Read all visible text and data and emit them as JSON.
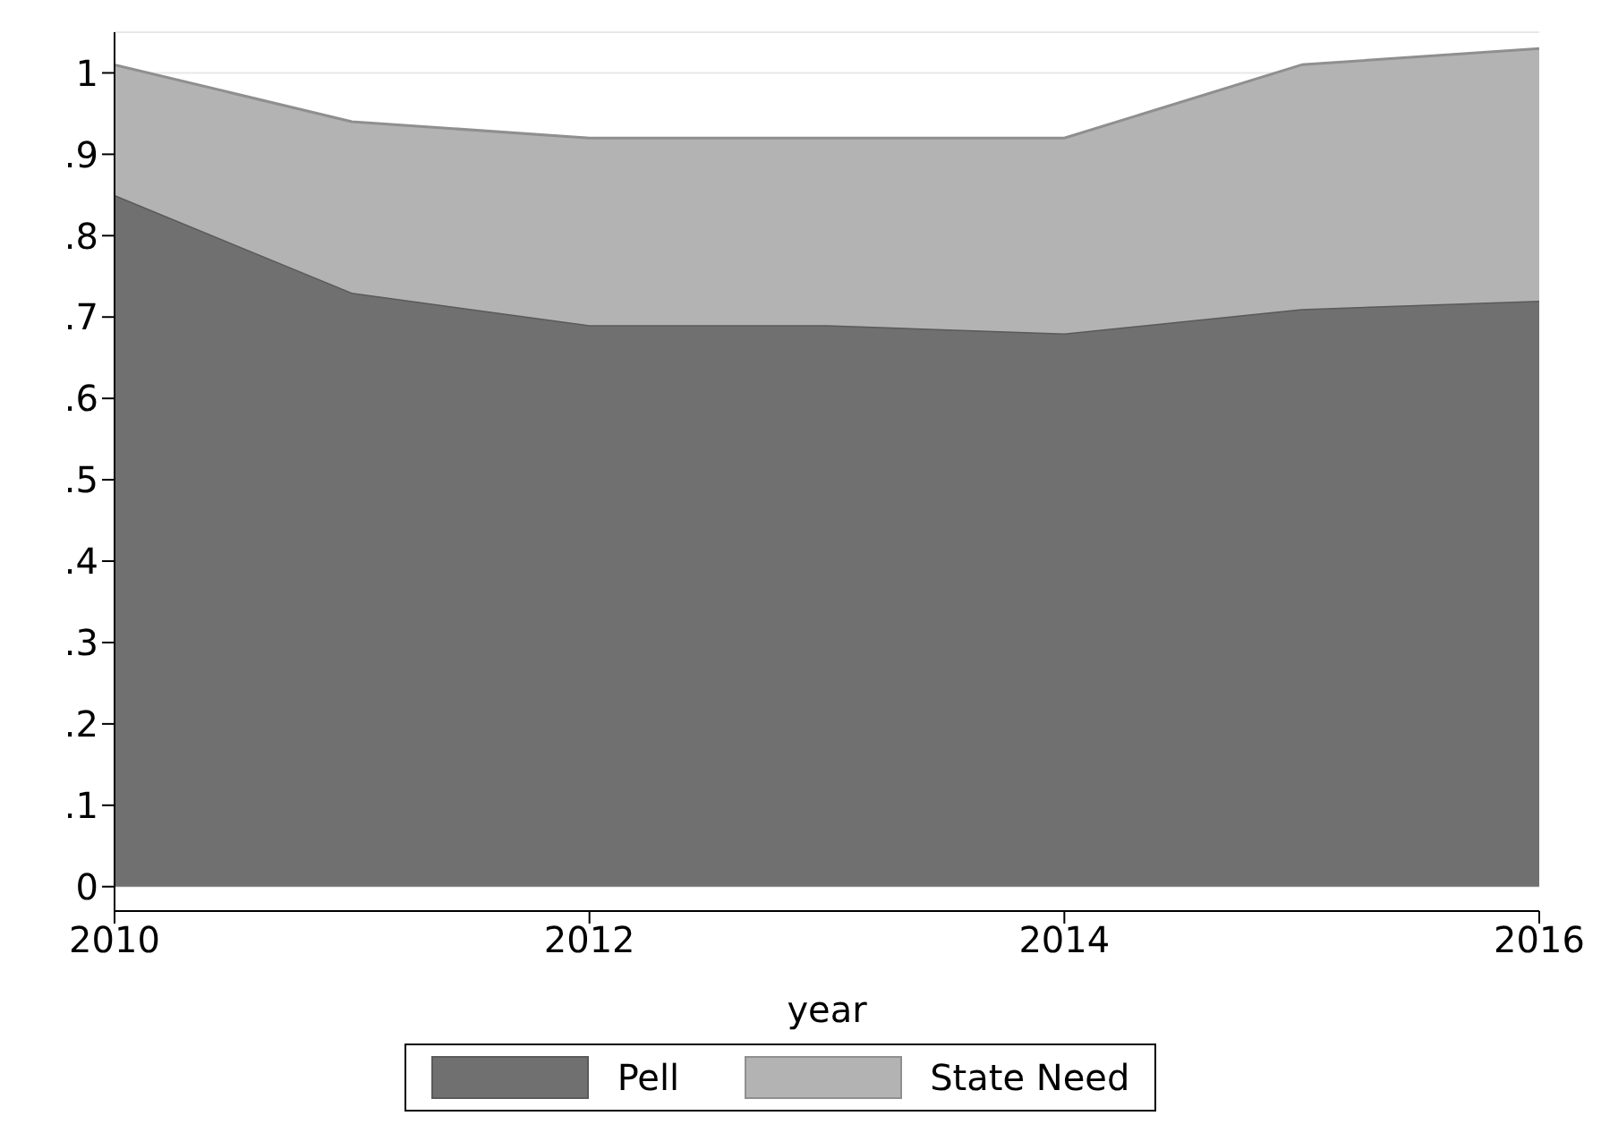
{
  "chart_data": {
    "type": "area",
    "xlabel": "year",
    "x": [
      2010,
      2011,
      2012,
      2013,
      2014,
      2015,
      2016
    ],
    "stacked": true,
    "series": [
      {
        "name": "Pell",
        "color": "#707070",
        "values": [
          0.85,
          0.73,
          0.69,
          0.69,
          0.68,
          0.71,
          0.72
        ]
      },
      {
        "name": "State Need",
        "color": "#b3b3b3",
        "values": [
          0.16,
          0.21,
          0.23,
          0.23,
          0.24,
          0.3,
          0.31
        ]
      }
    ],
    "xlim": [
      2010,
      2016
    ],
    "xticks": [
      2010,
      2012,
      2014,
      2016
    ],
    "ylim": [
      -0.03,
      1.05
    ],
    "yticks": [
      0,
      {
        "value": 0.1,
        "label": ".1"
      },
      {
        "value": 0.2,
        "label": ".2"
      },
      {
        "value": 0.3,
        "label": ".3"
      },
      {
        "value": 0.4,
        "label": ".4"
      },
      {
        "value": 0.5,
        "label": ".5"
      },
      {
        "value": 0.6,
        "label": ".6"
      },
      {
        "value": 0.7,
        "label": ".7"
      },
      {
        "value": 0.8,
        "label": ".8"
      },
      {
        "value": 0.9,
        "label": ".9"
      },
      1
    ],
    "grid": "y",
    "legend": "bottom"
  }
}
